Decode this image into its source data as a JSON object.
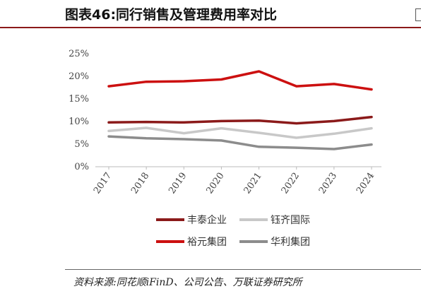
{
  "header": {
    "title": "图表46:同行销售及管理费用率对比"
  },
  "footer": {
    "source": "资料来源:同花顺iFinD、公司公告、万联证券研究所"
  },
  "chart_data": {
    "type": "line",
    "title": "",
    "xlabel": "",
    "ylabel": "",
    "categories": [
      "2017",
      "2018",
      "2019",
      "2020",
      "2021",
      "2022",
      "2023",
      "2024"
    ],
    "y_ticks": [
      "0%",
      "5%",
      "10%",
      "15%",
      "20%",
      "25%"
    ],
    "ylim": [
      0,
      25
    ],
    "y_unit": "%",
    "grid": false,
    "legend_placement": "bottom",
    "series": [
      {
        "name": "丰泰企业",
        "color": "#8b1a1a",
        "values": [
          9.8,
          9.9,
          9.8,
          10.1,
          10.2,
          9.6,
          10.1,
          11.0
        ]
      },
      {
        "name": "钰齐国际",
        "color": "#c8c8c8",
        "values": [
          7.9,
          8.6,
          7.4,
          8.5,
          7.5,
          6.4,
          7.3,
          8.5
        ]
      },
      {
        "name": "裕元集团",
        "color": "#cc1010",
        "values": [
          17.8,
          18.8,
          18.9,
          19.3,
          21.1,
          17.8,
          18.3,
          17.1
        ]
      },
      {
        "name": "华利集团",
        "color": "#8c8c8c",
        "values": [
          6.7,
          6.3,
          6.1,
          5.8,
          4.4,
          4.2,
          3.9,
          4.9
        ]
      }
    ]
  }
}
